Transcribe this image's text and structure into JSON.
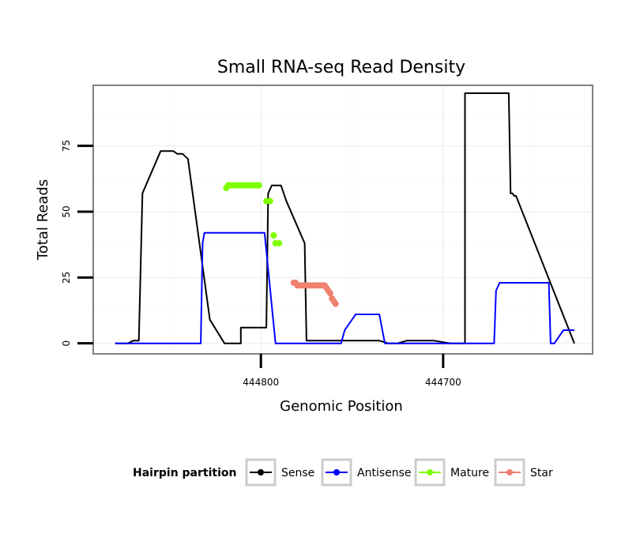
{
  "chart_data": {
    "type": "line",
    "title": "Small RNA-seq Read Density",
    "xlabel": "Genomic Position",
    "ylabel": "Total Reads",
    "x_reversed": true,
    "xlim": [
      444892,
      444618
    ],
    "ylim": [
      -4,
      98
    ],
    "x_ticks": [
      444800,
      444700
    ],
    "y_ticks": [
      0,
      25,
      50,
      75
    ],
    "x_tick_labels": [
      "444800",
      "444700"
    ],
    "y_tick_labels": [
      "0",
      "25",
      "50",
      "75"
    ],
    "grid": true,
    "legend": {
      "title": "Hairpin partition",
      "position": "bottom",
      "entries": [
        "Sense",
        "Antisense",
        "Mature",
        "Star"
      ]
    },
    "series": [
      {
        "name": "Sense",
        "color": "#000000",
        "style": "line",
        "x": [
          444880,
          444873,
          444870,
          444869,
          444867,
          444865,
          444855,
          444853,
          444851,
          444850,
          444848,
          444846,
          444844,
          444843,
          444840,
          444828,
          444820,
          444819,
          444818,
          444811,
          444811,
          444797,
          444796,
          444794,
          444793,
          444792,
          444790,
          444789,
          444786,
          444776,
          444775,
          444772,
          444768,
          444767,
          444766,
          444765,
          444764,
          444763,
          444762,
          444759,
          444756,
          444753,
          444750,
          444747,
          444744,
          444741,
          444738,
          444736,
          444735,
          444730,
          444728,
          444725,
          444720,
          444710,
          444708,
          444706,
          444705,
          444696,
          444690,
          444688,
          444688,
          444666,
          444664,
          444663,
          444662,
          444661,
          444660,
          444628
        ],
        "y": [
          0,
          0,
          1,
          1,
          1,
          57,
          73,
          73,
          73,
          73,
          73,
          72,
          72,
          72,
          70,
          9,
          0,
          0,
          0,
          0,
          6,
          6,
          57,
          60,
          60,
          60,
          60,
          60,
          54,
          38,
          1,
          1,
          1,
          1,
          1,
          1,
          1,
          1,
          1,
          1,
          1,
          1,
          1,
          1,
          1,
          1,
          1,
          1,
          1,
          0,
          0,
          0,
          1,
          1,
          1,
          1,
          1,
          0,
          0,
          0,
          95,
          95,
          95,
          57,
          57,
          56,
          56,
          0
        ]
      },
      {
        "name": "Antisense",
        "color": "#0000ff",
        "style": "line",
        "x": [
          444880,
          444833,
          444832,
          444831,
          444829,
          444819,
          444815,
          444812,
          444808,
          444798,
          444792,
          444783,
          444760,
          444756,
          444754,
          444752,
          444750,
          444749,
          444748,
          444747,
          444745,
          444740,
          444735,
          444732,
          444730,
          444728,
          444725,
          444710,
          444700,
          444672,
          444671,
          444669,
          444666,
          444660,
          444642,
          444641,
          444639,
          444636,
          444634,
          444628
        ],
        "y": [
          0,
          0,
          38,
          42,
          42,
          42,
          42,
          42,
          42,
          42,
          0,
          0,
          0,
          0,
          5,
          7,
          9,
          10,
          11,
          11,
          11,
          11,
          11,
          0,
          0,
          0,
          0,
          0,
          0,
          0,
          20,
          23,
          23,
          23,
          23,
          0,
          0,
          3,
          5,
          5
        ]
      },
      {
        "name": "Mature",
        "color": "#7fff00",
        "style": "points",
        "x": [
          444819,
          444818,
          444817,
          444816,
          444815,
          444814,
          444813,
          444812,
          444811,
          444810,
          444809,
          444808,
          444807,
          444806,
          444805,
          444804,
          444803,
          444802,
          444801,
          444797,
          444795,
          444795,
          444793,
          444793,
          444792,
          444790
        ],
        "y": [
          59,
          60,
          60,
          60,
          60,
          60,
          60,
          60,
          60,
          60,
          60,
          60,
          60,
          60,
          60,
          60,
          60,
          60,
          60,
          54,
          54,
          54,
          41,
          41,
          38,
          38
        ]
      },
      {
        "name": "Star",
        "color": "#f08070",
        "style": "points",
        "x": [
          444782,
          444781,
          444780,
          444779,
          444778,
          444777,
          444776,
          444775,
          444774,
          444773,
          444772,
          444771,
          444770,
          444769,
          444768,
          444767,
          444766,
          444765,
          444764,
          444763,
          444762,
          444761,
          444760,
          444759
        ],
        "y": [
          23,
          23,
          22,
          22,
          22,
          22,
          22,
          22,
          22,
          22,
          22,
          22,
          22,
          22,
          22,
          22,
          22,
          22,
          21,
          20,
          19,
          17,
          16,
          15
        ]
      }
    ]
  }
}
